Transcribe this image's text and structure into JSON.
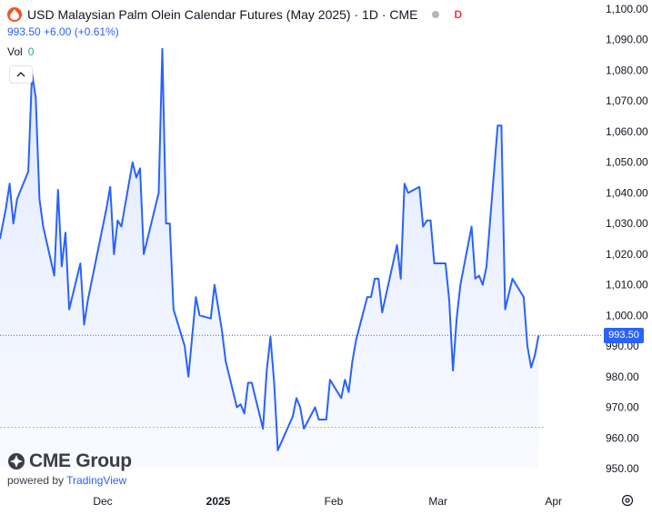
{
  "header": {
    "title": "USD Malaysian Palm Olein Calendar Futures (May 2025) · 1D · CME",
    "d_badge": "D",
    "price_line": "993.50 +6.00 (+0.61%)",
    "vol_label": "Vol",
    "vol_value": "0"
  },
  "brand": {
    "name": "CME Group",
    "powered_by": "powered by",
    "tradingview": "TradingView"
  },
  "last_price_tag": "993.50",
  "colors": {
    "line": "#2962ff",
    "fill": "#2962ff",
    "brand_accent": "#f4511e",
    "title_dot": "#f23645",
    "grid": "#f0f3fa"
  },
  "chart_data": {
    "type": "area",
    "title": "USD Malaysian Palm Olein Calendar Futures (May 2025) · 1D · CME",
    "x_tick_labels": [
      "Dec",
      "2025",
      "Feb",
      "Mar",
      "Apr"
    ],
    "y_tick_labels": [
      "1,100.00",
      "1,090.00",
      "1,080.00",
      "1,070.00",
      "1,060.00",
      "1,050.00",
      "1,040.00",
      "1,030.00",
      "1,020.00",
      "1,010.00",
      "1,000.00",
      "990.00",
      "980.00",
      "970.00",
      "960.00",
      "950.00"
    ],
    "y_ticks": [
      1100,
      1090,
      1080,
      1070,
      1060,
      1050,
      1040,
      1030,
      1020,
      1010,
      1000,
      990,
      980,
      970,
      960,
      950
    ],
    "ylim": [
      945,
      1102
    ],
    "last_value": 993.5,
    "baseline_value": 963.5,
    "grid": false,
    "x_dates": [
      "2024-11-04",
      "2024-11-05",
      "2024-11-06",
      "2024-11-07",
      "2024-11-08",
      "2024-11-11",
      "2024-11-12",
      "2024-11-13",
      "2024-11-14",
      "2024-11-15",
      "2024-11-18",
      "2024-11-19",
      "2024-11-20",
      "2024-11-21",
      "2024-11-22",
      "2024-11-25",
      "2024-11-26",
      "2024-11-27",
      "2024-11-29",
      "2024-12-02",
      "2024-12-03",
      "2024-12-04",
      "2024-12-05",
      "2024-12-06",
      "2024-12-09",
      "2024-12-10",
      "2024-12-11",
      "2024-12-12",
      "2024-12-13",
      "2024-12-16",
      "2024-12-17",
      "2024-12-18",
      "2024-12-19",
      "2024-12-20",
      "2024-12-23",
      "2024-12-24",
      "2024-12-26",
      "2024-12-27",
      "2024-12-30",
      "2024-12-31",
      "2025-01-02",
      "2025-01-03",
      "2025-01-06",
      "2025-01-07",
      "2025-01-08",
      "2025-01-09",
      "2025-01-10",
      "2025-01-13",
      "2025-01-14",
      "2025-01-15",
      "2025-01-16",
      "2025-01-17",
      "2025-01-21",
      "2025-01-22",
      "2025-01-23",
      "2025-01-24",
      "2025-01-27",
      "2025-01-28",
      "2025-01-29",
      "2025-01-30",
      "2025-01-31",
      "2025-02-03",
      "2025-02-04",
      "2025-02-05",
      "2025-02-06",
      "2025-02-07",
      "2025-02-10",
      "2025-02-11",
      "2025-02-12",
      "2025-02-13",
      "2025-02-14",
      "2025-02-18",
      "2025-02-19",
      "2025-02-20",
      "2025-02-21",
      "2025-02-24",
      "2025-02-25",
      "2025-02-26",
      "2025-02-27",
      "2025-02-28",
      "2025-03-03",
      "2025-03-04",
      "2025-03-05",
      "2025-03-06",
      "2025-03-07",
      "2025-03-10",
      "2025-03-11",
      "2025-03-12",
      "2025-03-13",
      "2025-03-14",
      "2025-03-17",
      "2025-03-18",
      "2025-03-19",
      "2025-03-20",
      "2025-03-21",
      "2025-03-24",
      "2025-03-25",
      "2025-03-26",
      "2025-03-27",
      "2025-03-28"
    ],
    "y_values": [
      1025,
      1035,
      1043,
      1030,
      1038,
      1047,
      1079,
      1071,
      1038,
      1029,
      1013,
      1041,
      1016,
      1027,
      1002,
      1017,
      997,
      1005,
      1017,
      1035,
      1042,
      1020,
      1031,
      1029,
      1050,
      1045,
      1048,
      1020,
      1025,
      1040,
      1087,
      1030,
      1030,
      1002,
      990,
      980,
      1006,
      1000,
      999,
      1010,
      995,
      985,
      970,
      971,
      968,
      978,
      978,
      963,
      982,
      993,
      978,
      956,
      967,
      973,
      970,
      963,
      970,
      966,
      966,
      966,
      979,
      973,
      979,
      975,
      985,
      992,
      1006,
      1006,
      1012,
      1012,
      1001,
      1023,
      1012,
      1043,
      1040,
      1042,
      1029,
      1031,
      1031,
      1017,
      1017,
      1005,
      982,
      999,
      1010,
      1029,
      1012,
      1013,
      1010,
      1016,
      1062,
      1062,
      1002,
      1007,
      1012,
      1006,
      990,
      983,
      987,
      993.5
    ]
  }
}
